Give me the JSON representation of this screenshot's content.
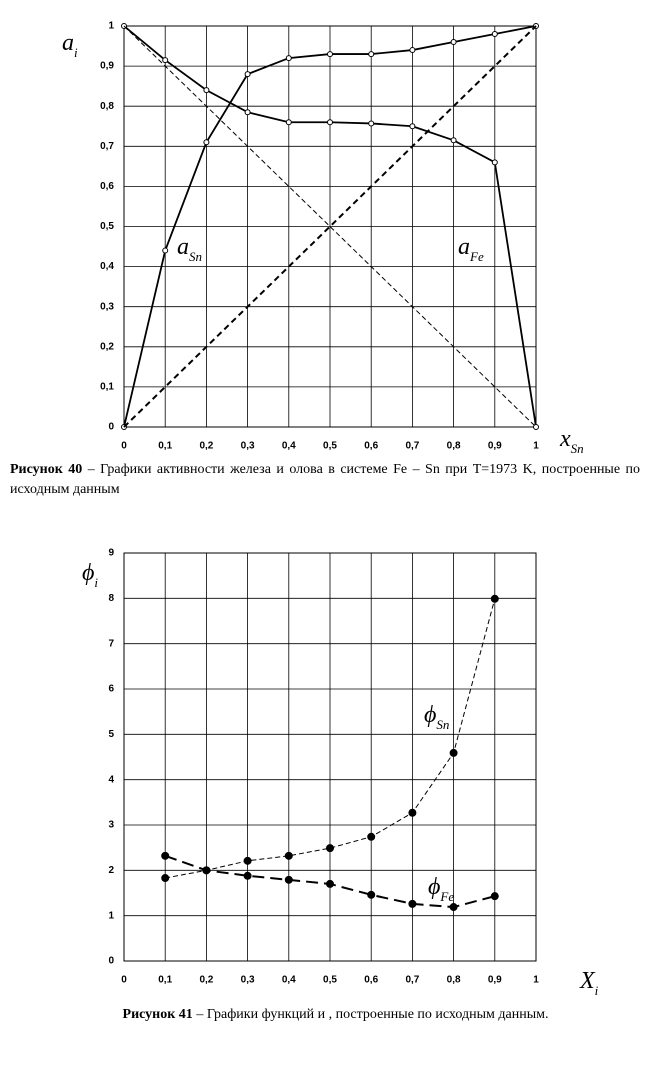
{
  "chart_data": [
    {
      "type": "line",
      "y_label": {
        "base": "a",
        "sub": "i"
      },
      "x_label": {
        "base": "x",
        "sub": "Sn"
      },
      "x": [
        0,
        0.1,
        0.2,
        0.3,
        0.4,
        0.5,
        0.6,
        0.7,
        0.8,
        0.9,
        1
      ],
      "xlim": [
        0,
        1
      ],
      "ylim": [
        0,
        1
      ],
      "xticks": [
        0,
        {
          "value": 0.1,
          "label": "0,1"
        },
        {
          "value": 0.2,
          "label": "0,2"
        },
        {
          "value": 0.3,
          "label": "0,3"
        },
        {
          "value": 0.4,
          "label": "0,4"
        },
        {
          "value": 0.5,
          "label": "0,5"
        },
        {
          "value": 0.6,
          "label": "0,6"
        },
        {
          "value": 0.7,
          "label": "0,7"
        },
        {
          "value": 0.8,
          "label": "0,8"
        },
        {
          "value": 0.9,
          "label": "0,9"
        },
        1
      ],
      "yticks": [
        0,
        {
          "value": 0.1,
          "label": "0,1"
        },
        {
          "value": 0.2,
          "label": "0,2"
        },
        {
          "value": 0.3,
          "label": "0,3"
        },
        {
          "value": 0.4,
          "label": "0,4"
        },
        {
          "value": 0.5,
          "label": "0,5"
        },
        {
          "value": 0.6,
          "label": "0,6"
        },
        {
          "value": 0.7,
          "label": "0,7"
        },
        {
          "value": 0.8,
          "label": "0,8"
        },
        {
          "value": 0.9,
          "label": "0,9"
        },
        1
      ],
      "grid": true,
      "series": [
        {
          "name": "a",
          "sub": "Sn",
          "color": "#000000",
          "style": "solid",
          "marker": "open",
          "values": [
            0,
            0.44,
            0.71,
            0.88,
            0.92,
            0.93,
            0.93,
            0.94,
            0.96,
            0.98,
            1
          ]
        },
        {
          "name": "a",
          "sub": "Fe",
          "color": "#000000",
          "style": "solid",
          "marker": "open",
          "values": [
            1,
            0.915,
            0.84,
            0.785,
            0.76,
            0.76,
            0.757,
            0.75,
            0.715,
            0.66,
            0
          ]
        },
        {
          "color": "#000000",
          "style": "dashed",
          "values": [
            0,
            0.1,
            0.2,
            0.3,
            0.4,
            0.5,
            0.6,
            0.7,
            0.8,
            0.9,
            1
          ]
        },
        {
          "color": "#000000",
          "style": "thin-dashed",
          "values": [
            1,
            0.9,
            0.8,
            0.7,
            0.6,
            0.5,
            0.4,
            0.3,
            0.2,
            0.1,
            0
          ]
        }
      ],
      "caption": {
        "number": "Рисунок 40",
        "text": "– Графики активности железа и олова в системе Fe – Sn при T=1973 K, построенные по исходным данным"
      }
    },
    {
      "type": "line",
      "y_label": {
        "base": "ϕ",
        "sub": "i"
      },
      "x_label": {
        "base": "X",
        "sub": "i"
      },
      "x": [
        0.1,
        0.2,
        0.3,
        0.4,
        0.5,
        0.6,
        0.7,
        0.8,
        0.9
      ],
      "xlim": [
        0,
        1
      ],
      "ylim": [
        0,
        9
      ],
      "xticks": [
        0,
        {
          "value": 0.1,
          "label": "0,1"
        },
        {
          "value": 0.2,
          "label": "0,2"
        },
        {
          "value": 0.3,
          "label": "0,3"
        },
        {
          "value": 0.4,
          "label": "0,4"
        },
        {
          "value": 0.5,
          "label": "0,5"
        },
        {
          "value": 0.6,
          "label": "0,6"
        },
        {
          "value": 0.7,
          "label": "0,7"
        },
        {
          "value": 0.8,
          "label": "0,8"
        },
        {
          "value": 0.9,
          "label": "0,9"
        },
        1
      ],
      "yticks": [
        0,
        1,
        2,
        3,
        4,
        5,
        6,
        7,
        8,
        9
      ],
      "grid": true,
      "series": [
        {
          "name": "ϕ",
          "sub": "Sn",
          "color": "#000000",
          "style": "thin-dashed",
          "marker": "dot",
          "values": [
            1.83,
            2.0,
            2.21,
            2.32,
            2.49,
            2.74,
            3.27,
            4.59,
            7.99
          ]
        },
        {
          "name": "ϕ",
          "sub": "Fe",
          "color": "#000000",
          "style": "long-dashed",
          "marker": "dot",
          "values": [
            2.32,
            2.0,
            1.88,
            1.79,
            1.7,
            1.46,
            1.26,
            1.19,
            1.43
          ]
        }
      ],
      "caption": {
        "number": "Рисунок 41",
        "text": "– Графики функций  и  , построенные по исходным данным."
      }
    }
  ]
}
